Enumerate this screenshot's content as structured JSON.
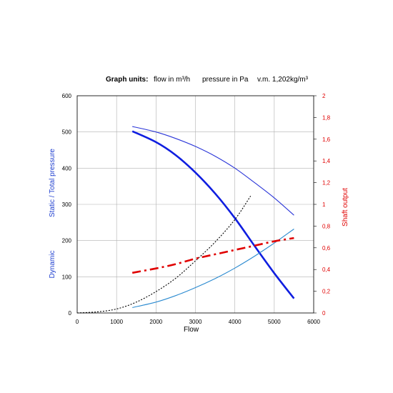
{
  "header": {
    "label": "Graph units:",
    "flow_unit": "flow in m³/h",
    "pressure_unit": "pressure in Pa",
    "density": "v.m. 1,202kg/m³"
  },
  "chart_data": {
    "type": "line",
    "xlabel": "Flow",
    "ylabel_left_top": "Static / Total pressure",
    "ylabel_left_bottom": "Dynamic",
    "ylabel_right": "Shaft output",
    "xlim": [
      0,
      6000
    ],
    "ylim_left": [
      0,
      600
    ],
    "ylim_right": [
      0,
      2
    ],
    "grid": true,
    "x_ticks": [
      "0",
      "1000",
      "2000",
      "3000",
      "4000",
      "5000",
      "6000"
    ],
    "y_left_ticks": [
      "0",
      "100",
      "200",
      "300",
      "400",
      "500",
      "600"
    ],
    "y_right_ticks": [
      "0",
      "0,2",
      "0,4",
      "0,6",
      "0,8",
      "1",
      "1,2",
      "1,4",
      "1,6",
      "1,8",
      "2"
    ],
    "colors": {
      "left_axis_text": "#1f3fcf",
      "right_axis_text": "#e00000",
      "total_pressure": "#2a35d8",
      "static_pressure": "#0f1ee0",
      "dynamic_pressure": "#2a8ad0",
      "shaft_output": "#e00000",
      "system_curve": "#000000",
      "grid": "#b0b0b0"
    },
    "series": [
      {
        "key": "total_pressure",
        "axis": "left",
        "style": "thin",
        "x": [
          1400,
          2000,
          2500,
          3000,
          3500,
          4000,
          4500,
          5000,
          5500
        ],
        "y": [
          515,
          500,
          482,
          460,
          433,
          400,
          360,
          318,
          270
        ]
      },
      {
        "key": "static_pressure",
        "axis": "left",
        "style": "thick",
        "x": [
          1400,
          2000,
          2500,
          3000,
          3500,
          4000,
          4500,
          5000,
          5500
        ],
        "y": [
          502,
          472,
          436,
          388,
          330,
          262,
          185,
          110,
          40
        ]
      },
      {
        "key": "dynamic_pressure",
        "axis": "left",
        "style": "thin",
        "x": [
          1400,
          2000,
          2500,
          3000,
          3500,
          4000,
          4500,
          5000,
          5500
        ],
        "y": [
          15,
          30,
          48,
          70,
          95,
          124,
          157,
          193,
          232
        ]
      },
      {
        "key": "system_curve",
        "axis": "left",
        "style": "dotted",
        "x": [
          0,
          500,
          1000,
          1500,
          2000,
          2500,
          3000,
          3500,
          4000,
          4400
        ],
        "y": [
          0,
          3,
          11,
          30,
          59,
          96,
          144,
          196,
          258,
          323
        ]
      },
      {
        "key": "shaft_output",
        "axis": "right",
        "style": "dashdot",
        "x": [
          1400,
          2000,
          2500,
          3000,
          3500,
          4000,
          4500,
          5000,
          5500
        ],
        "y": [
          0.37,
          0.41,
          0.45,
          0.5,
          0.54,
          0.58,
          0.62,
          0.66,
          0.69
        ]
      }
    ]
  }
}
